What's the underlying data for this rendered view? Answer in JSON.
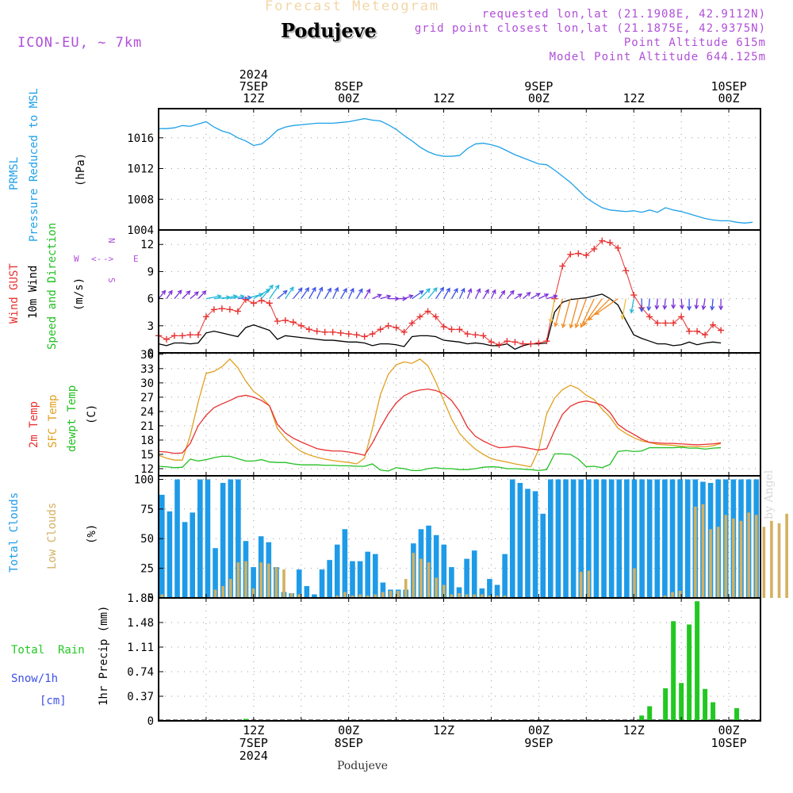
{
  "header": {
    "title": "Forecast Meteogram",
    "station": "Podujeve",
    "model": "ICON-EU, ~ 7km",
    "requested": "requested lon,lat (21.1908E, 42.9112N)",
    "gridpoint": "grid point closest lon,lat (21.1875E, 42.9375N)",
    "point_altitude": "Point Altitude 615m",
    "model_altitude": "Model Point Altitude 644.125m",
    "watermark": "by Angel",
    "footer_station": "Podujeve"
  },
  "time_axis": {
    "top_labels": [
      {
        "lines": [
          "2024",
          "7SEP",
          "12Z"
        ],
        "hour": 12
      },
      {
        "lines": [
          "8SEP",
          "00Z"
        ],
        "hour": 24
      },
      {
        "lines": [
          "12Z"
        ],
        "hour": 36
      },
      {
        "lines": [
          "9SEP",
          "00Z"
        ],
        "hour": 48
      },
      {
        "lines": [
          "12Z"
        ],
        "hour": 60
      },
      {
        "lines": [
          "10SEP",
          "00Z"
        ],
        "hour": 72
      }
    ],
    "bottom_labels": [
      {
        "lines": [
          "12Z",
          "7SEP",
          "2024"
        ],
        "hour": 12
      },
      {
        "lines": [
          "00Z",
          "8SEP"
        ],
        "hour": 24
      },
      {
        "lines": [
          "12Z"
        ],
        "hour": 36
      },
      {
        "lines": [
          "00Z",
          "9SEP"
        ],
        "hour": 48
      },
      {
        "lines": [
          "12Z"
        ],
        "hour": 60
      },
      {
        "lines": [
          "00Z",
          "10SEP"
        ],
        "hour": 72
      }
    ]
  },
  "colors": {
    "pressure": "#1ea0e8",
    "gust": "#e83030",
    "wind": "#000000",
    "t2m": "#e83030",
    "sfc": "#e0a020",
    "dew": "#22c022",
    "total_clouds": "#1e9be8",
    "low_clouds": "#d4b060",
    "rain": "#22c822",
    "snow": "#3c50e8",
    "purple": "#b04fd8"
  },
  "panel_labels": {
    "pressure": [
      "PRMSL",
      "Pressure Reduced to MSL",
      "(hPa)"
    ],
    "wind": [
      "Wind GUST",
      "10m Wind",
      "Speed and Direction",
      "(m/s)"
    ],
    "compass": {
      "n": "N",
      "s": "S",
      "w": "W",
      "e": "E"
    },
    "temp": [
      "2m Temp",
      "SFC Temp",
      "dewpt Temp",
      "(C)"
    ],
    "clouds": [
      "Total Clouds",
      "Low Clouds",
      "(%)"
    ],
    "precip": [
      "Total  Rain",
      "Snow/1h",
      "[cm]",
      "1hr Precip (mm)"
    ]
  },
  "chart_data": [
    {
      "type": "line",
      "title": "PRMSL Pressure Reduced to MSL",
      "ylabel": "(hPa)",
      "x_start_hour": 0,
      "x_step_hours": 1,
      "ylim": [
        1004,
        1019.8
      ],
      "yticks": [
        1004,
        1008,
        1012,
        1016
      ],
      "grid": true,
      "series": [
        {
          "name": "PRMSL",
          "values": [
            1017.2,
            1017.2,
            1017.3,
            1017.6,
            1017.5,
            1017.8,
            1018.1,
            1017.4,
            1016.9,
            1016.6,
            1016.0,
            1015.6,
            1015.0,
            1015.2,
            1016.0,
            1017.0,
            1017.4,
            1017.6,
            1017.7,
            1017.8,
            1017.9,
            1017.9,
            1017.9,
            1018.0,
            1018.1,
            1018.3,
            1018.5,
            1018.3,
            1018.2,
            1017.7,
            1017.1,
            1016.3,
            1015.6,
            1014.8,
            1014.2,
            1013.8,
            1013.6,
            1013.6,
            1013.7,
            1014.6,
            1015.2,
            1015.3,
            1015.1,
            1014.8,
            1014.3,
            1013.8,
            1013.4,
            1013.0,
            1012.6,
            1012.5,
            1011.8,
            1011.0,
            1010.2,
            1009.2,
            1008.2,
            1007.5,
            1006.9,
            1006.6,
            1006.5,
            1006.4,
            1006.5,
            1006.3,
            1006.6,
            1006.3,
            1006.9,
            1006.6,
            1006.4,
            1006.1,
            1005.8,
            1005.5,
            1005.3,
            1005.2,
            1005.2,
            1005.0,
            1004.9,
            1005.0
          ]
        }
      ]
    },
    {
      "type": "line",
      "title": "Wind GUST / 10m Wind Speed and Direction",
      "ylabel": "(m/s)",
      "x_start_hour": 0,
      "x_step_hours": 1,
      "ylim": [
        0,
        13.6
      ],
      "yticks": [
        0,
        3,
        6,
        9,
        12
      ],
      "grid": true,
      "series": [
        {
          "name": "Wind GUST",
          "marker": "plus",
          "values": [
            1.9,
            1.5,
            1.9,
            1.9,
            2.0,
            2.0,
            4.0,
            4.8,
            4.9,
            4.8,
            4.6,
            5.9,
            5.5,
            5.8,
            5.5,
            3.5,
            3.6,
            3.4,
            3.0,
            2.6,
            2.4,
            2.3,
            2.3,
            2.2,
            2.1,
            2.0,
            1.8,
            2.1,
            2.6,
            3.0,
            2.8,
            2.3,
            3.3,
            4.0,
            4.6,
            4.0,
            2.9,
            2.6,
            2.6,
            2.1,
            2.0,
            1.9,
            1.2,
            0.9,
            1.3,
            1.2,
            1.0,
            1.0,
            1.1,
            1.3,
            6.0,
            9.6,
            10.9,
            11.0,
            10.8,
            11.5,
            12.4,
            12.2,
            11.6,
            9.1,
            6.4,
            5.0,
            4.0,
            3.3,
            3.3,
            3.3,
            4.0,
            2.4,
            2.4,
            2.0,
            3.1,
            2.5
          ]
        },
        {
          "name": "10m Wind",
          "values": [
            1.0,
            0.8,
            1.1,
            1.1,
            1.0,
            1.1,
            2.2,
            2.4,
            2.2,
            2.0,
            1.8,
            2.8,
            3.1,
            2.8,
            2.5,
            1.5,
            1.9,
            1.8,
            1.7,
            1.6,
            1.5,
            1.4,
            1.4,
            1.3,
            1.2,
            1.2,
            1.1,
            0.8,
            1.0,
            1.0,
            0.9,
            0.7,
            1.8,
            1.9,
            1.9,
            1.8,
            1.4,
            1.3,
            1.2,
            1.0,
            1.1,
            1.0,
            0.8,
            0.8,
            1.0,
            0.4,
            0.8,
            1.0,
            1.0,
            1.1,
            4.5,
            5.6,
            5.9,
            6.0,
            6.1,
            6.3,
            6.5,
            6.0,
            5.3,
            3.6,
            2.0,
            1.6,
            1.3,
            1.0,
            1.0,
            0.8,
            0.9,
            1.2,
            0.9,
            1.1,
            1.2,
            1.1
          ]
        }
      ],
      "direction_arrows": {
        "y_value": 6,
        "deg": [
          220,
          215,
          220,
          225,
          230,
          225,
          260,
          265,
          260,
          260,
          265,
          255,
          240,
          220,
          215,
          230,
          215,
          220,
          215,
          210,
          205,
          210,
          205,
          210,
          205,
          210,
          210,
          245,
          255,
          270,
          270,
          250,
          235,
          225,
          220,
          215,
          210,
          210,
          205,
          200,
          205,
          210,
          205,
          215,
          220,
          235,
          230,
          240,
          245,
          255,
          10,
          15,
          15,
          15,
          20,
          25,
          35,
          45,
          55,
          10,
          10,
          0,
          5,
          5,
          5,
          0,
          355,
          0,
          5,
          10,
          5,
          0
        ]
      }
    },
    {
      "type": "line",
      "title": "2m Temp / SFC Temp / dewpt Temp",
      "ylabel": "(C)",
      "x_start_hour": 0,
      "x_step_hours": 1,
      "ylim": [
        10.5,
        36.3
      ],
      "yticks": [
        12,
        15,
        18,
        21,
        24,
        27,
        30,
        33,
        36
      ],
      "grid": true,
      "series": [
        {
          "name": "2m Temp",
          "values": [
            15.6,
            15.5,
            15.2,
            15.3,
            17.3,
            21.0,
            23.2,
            24.8,
            25.6,
            26.3,
            27.1,
            27.4,
            27.0,
            26.3,
            25.2,
            21.3,
            19.5,
            18.4,
            17.6,
            16.9,
            16.2,
            15.9,
            15.7,
            15.7,
            15.5,
            15.2,
            14.8,
            17.4,
            20.6,
            23.5,
            25.8,
            27.3,
            28.1,
            28.5,
            28.7,
            28.4,
            27.7,
            26.3,
            24.0,
            20.7,
            18.8,
            17.8,
            17.0,
            16.4,
            16.5,
            16.7,
            16.5,
            16.2,
            15.9,
            16.2,
            20.0,
            23.4,
            25.1,
            25.9,
            26.2,
            25.9,
            25.3,
            23.8,
            21.3,
            20.1,
            19.2,
            18.2,
            17.5,
            17.4,
            17.3,
            17.3,
            17.2,
            17.1,
            17.0,
            17.1,
            17.2,
            17.4
          ]
        },
        {
          "name": "SFC Temp",
          "values": [
            14.8,
            14.2,
            13.8,
            13.8,
            19.0,
            26.0,
            32.0,
            32.4,
            33.4,
            35.0,
            33.2,
            30.4,
            28.2,
            27.0,
            25.2,
            20.4,
            18.4,
            16.8,
            15.6,
            14.9,
            14.4,
            14.0,
            13.7,
            13.5,
            13.3,
            13.0,
            14.2,
            20.4,
            27.5,
            31.8,
            33.8,
            34.4,
            34.1,
            35.0,
            33.6,
            30.2,
            26.3,
            22.4,
            19.4,
            17.6,
            16.1,
            15.0,
            14.1,
            13.7,
            13.4,
            13.0,
            12.7,
            12.4,
            16.0,
            23.5,
            26.8,
            28.6,
            29.5,
            28.8,
            27.4,
            26.5,
            24.5,
            22.8,
            20.5,
            19.4,
            18.5,
            17.8,
            17.5,
            17.1,
            17.0,
            16.9,
            16.7,
            16.7,
            16.6,
            16.6,
            16.8,
            17.3
          ]
        },
        {
          "name": "dewpt Temp",
          "values": [
            12.5,
            12.4,
            12.2,
            12.3,
            14.0,
            13.6,
            13.9,
            14.3,
            14.6,
            14.6,
            14.1,
            13.6,
            13.6,
            13.9,
            13.4,
            13.3,
            13.3,
            13.0,
            12.8,
            12.8,
            12.8,
            12.7,
            12.7,
            12.6,
            12.6,
            12.5,
            12.5,
            13.0,
            11.7,
            11.5,
            12.2,
            12.0,
            11.6,
            11.6,
            12.0,
            12.2,
            12.0,
            12.0,
            11.8,
            11.8,
            12.0,
            12.3,
            12.4,
            12.3,
            12.0,
            12.0,
            11.9,
            11.8,
            11.6,
            11.8,
            15.1,
            15.1,
            15.0,
            14.0,
            12.4,
            12.5,
            12.2,
            12.9,
            15.6,
            15.8,
            15.6,
            15.7,
            16.4,
            16.4,
            16.4,
            16.4,
            16.5,
            16.3,
            16.3,
            16.1,
            16.3,
            16.4
          ]
        }
      ]
    },
    {
      "type": "bar",
      "title": "Total Clouds / Low Clouds",
      "ylabel": "(%)",
      "x_start_hour": 0,
      "x_step_hours": 1,
      "ylim": [
        0,
        103
      ],
      "yticks": [
        0,
        25,
        50,
        75,
        100
      ],
      "grid": true,
      "series": [
        {
          "name": "Total Clouds",
          "values": [
            87,
            73,
            100,
            64,
            72,
            100,
            100,
            42,
            97,
            100,
            100,
            48,
            26,
            52,
            47,
            26,
            5,
            4,
            24,
            10,
            3,
            24,
            32,
            45,
            58,
            31,
            31,
            39,
            37,
            13,
            7,
            7,
            7,
            46,
            58,
            61,
            53,
            45,
            26,
            9,
            33,
            40,
            8,
            16,
            11,
            37,
            100,
            97,
            92,
            90,
            71,
            100,
            100,
            100,
            100,
            100,
            100,
            100,
            100,
            100,
            100,
            100,
            100,
            100,
            100,
            100,
            100,
            100,
            100,
            100,
            100,
            98,
            97,
            100,
            100,
            100,
            100,
            100,
            100
          ]
        },
        {
          "name": "Low Clouds",
          "values": [
            3,
            0,
            0,
            0,
            0,
            0,
            0,
            7,
            10,
            16,
            30,
            31,
            8,
            30,
            29,
            26,
            24,
            4,
            3,
            0,
            0,
            0,
            0,
            2,
            5,
            2,
            3,
            2,
            3,
            5,
            6,
            6,
            16,
            38,
            33,
            30,
            17,
            11,
            3,
            4,
            3,
            3,
            3,
            2,
            2,
            2,
            0,
            0,
            0,
            0,
            0,
            0,
            0,
            0,
            0,
            22,
            23,
            0,
            0,
            0,
            0,
            0,
            25,
            0,
            0,
            0,
            2,
            5,
            6,
            0,
            77,
            79,
            58,
            60,
            70,
            67,
            65,
            72,
            70,
            60,
            65,
            63,
            71
          ]
        }
      ]
    },
    {
      "type": "bar",
      "title": "1hr Precip (mm)",
      "ylabel": "1hr Precip (mm)",
      "x_start_hour": 0,
      "x_step_hours": 1,
      "ylim": [
        0,
        1.85
      ],
      "yticks": [
        0,
        0.37,
        0.74,
        1.11,
        1.48,
        1.85
      ],
      "grid": true,
      "series": [
        {
          "name": "Total Rain",
          "values": [
            0,
            0,
            0,
            0,
            0,
            0,
            0,
            0,
            0,
            0,
            0,
            0.03,
            0,
            0,
            0,
            0,
            0,
            0,
            0,
            0,
            0,
            0,
            0,
            0,
            0,
            0,
            0,
            0,
            0,
            0,
            0,
            0,
            0,
            0,
            0,
            0,
            0,
            0,
            0,
            0,
            0,
            0,
            0,
            0,
            0,
            0,
            0,
            0,
            0,
            0,
            0,
            0,
            0,
            0,
            0,
            0,
            0,
            0,
            0,
            0,
            0,
            0.08,
            0.22,
            0,
            0.49,
            1.5,
            0.57,
            1.45,
            1.8,
            0.48,
            0.28,
            0,
            0,
            0.19
          ]
        },
        {
          "name": "Snow/1h",
          "values": []
        }
      ]
    }
  ]
}
